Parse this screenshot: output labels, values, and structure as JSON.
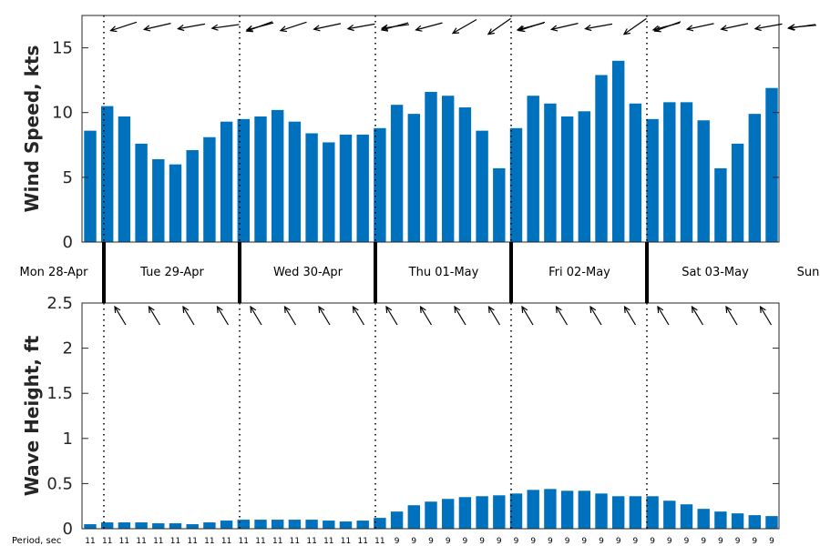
{
  "colors": {
    "bar": "#0072BD",
    "axis": "#262626",
    "arrow": "#000000"
  },
  "chart_data": [
    {
      "type": "bar",
      "id": "wind",
      "ylabel": "Wind Speed, kts",
      "ylim": [
        0,
        17.5
      ],
      "yticks": [
        0,
        5,
        10,
        15
      ],
      "ytick_labels": [
        "0",
        "5",
        "10",
        "15"
      ],
      "grid": false,
      "x_start": "Mon 28-Apr 15:00",
      "x_step_hours": 3,
      "values": [
        8.6,
        10.5,
        9.7,
        7.6,
        6.4,
        6.0,
        7.1,
        8.1,
        9.3,
        9.5,
        9.7,
        10.2,
        9.3,
        8.4,
        7.7,
        8.3,
        8.3,
        8.8,
        10.6,
        9.9,
        11.6,
        11.3,
        10.4,
        8.6,
        5.7,
        8.8,
        11.3,
        10.7,
        9.7,
        10.1,
        12.9,
        14.0,
        10.7,
        9.5,
        10.8,
        10.8,
        9.4,
        5.7,
        7.6,
        9.9,
        11.9
      ],
      "direction_arrows": {
        "symbol": "arrow",
        "headings_deg": [
          198,
          193,
          190,
          188,
          195,
          200,
          198,
          192,
          190,
          188,
          195,
          195,
          210,
          215,
          198,
          195,
          193,
          190,
          215,
          200,
          195,
          192,
          192,
          190,
          185,
          188,
          190,
          188,
          188,
          190
        ]
      }
    },
    {
      "type": "bar",
      "id": "wave",
      "ylabel": "Wave Height, ft",
      "ylim": [
        0,
        2.5
      ],
      "yticks": [
        0,
        0.5,
        1,
        1.5,
        2,
        2.5
      ],
      "ytick_labels": [
        "0",
        "0.5",
        "1",
        "1.5",
        "2",
        "2.5"
      ],
      "grid": false,
      "x_start": "Mon 28-Apr 15:00",
      "x_step_hours": 3,
      "values": [
        0.05,
        0.07,
        0.07,
        0.07,
        0.06,
        0.06,
        0.05,
        0.07,
        0.09,
        0.1,
        0.1,
        0.1,
        0.1,
        0.1,
        0.09,
        0.08,
        0.09,
        0.12,
        0.19,
        0.26,
        0.3,
        0.33,
        0.35,
        0.36,
        0.37,
        0.39,
        0.43,
        0.44,
        0.42,
        0.42,
        0.39,
        0.36,
        0.36,
        0.36,
        0.31,
        0.27,
        0.22,
        0.19,
        0.17,
        0.15,
        0.14
      ],
      "direction_arrows": {
        "symbol": "arrow",
        "headings_deg": [
          -25,
          -25,
          -25,
          -25,
          -25,
          -25,
          -25,
          -25,
          -25,
          -25,
          -25,
          -25,
          -25,
          -25,
          -25,
          -25,
          -25,
          -25,
          -25,
          -25
        ]
      },
      "period_label": "Period, sec",
      "periods": [
        "11",
        "11",
        "11",
        "11",
        "11",
        "11",
        "11",
        "11",
        "11",
        "11",
        "11",
        "11",
        "11",
        "11",
        "11",
        "11",
        "11",
        "11",
        "9",
        "9",
        "9",
        "9",
        "9",
        "9",
        "9",
        "9",
        "9",
        "9",
        "9",
        "9",
        "9",
        "9",
        "9",
        "9",
        "9",
        "9",
        "9",
        "9",
        "9",
        "9",
        "9"
      ]
    }
  ],
  "days": [
    "Mon 28-Apr",
    "Tue 29-Apr",
    "Wed 30-Apr",
    "Thu 01-May",
    "Fri 02-May",
    "Sat 03-May",
    "Sun"
  ]
}
